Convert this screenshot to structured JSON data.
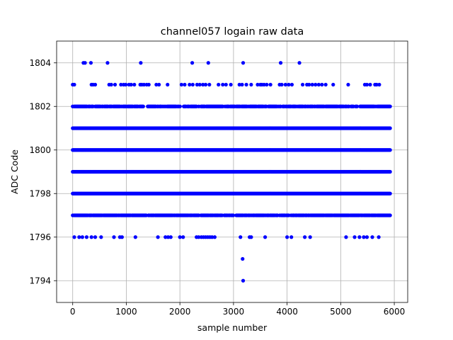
{
  "chart_data": {
    "type": "scatter",
    "title": "channel057 logain raw data",
    "xlabel": "sample number",
    "ylabel": "ADC Code",
    "xlim": [
      -300,
      6250
    ],
    "ylim": [
      1793.0,
      1805.0
    ],
    "xticks": [
      0,
      1000,
      2000,
      3000,
      4000,
      5000,
      6000
    ],
    "yticks": [
      1794,
      1796,
      1798,
      1800,
      1802,
      1804
    ],
    "grid": true,
    "marker": "circle",
    "color": "#0000ff",
    "sample_count": 6000,
    "points_by_level": [
      {
        "y": 1804,
        "x": [
          200,
          230,
          340,
          650,
          1270,
          2230,
          2530,
          3180,
          3880,
          4230
        ]
      },
      {
        "y": 1803,
        "x": [
          0,
          30,
          350,
          380,
          420,
          680,
          720,
          790,
          900,
          950,
          990,
          1050,
          1090,
          1150,
          1260,
          1290,
          1330,
          1380,
          1420,
          1560,
          1610,
          1770,
          2030,
          2090,
          2180,
          2240,
          2320,
          2370,
          2430,
          2480,
          2550,
          2720,
          2800,
          2860,
          2950,
          3110,
          3160,
          3240,
          3330,
          3450,
          3500,
          3530,
          3570,
          3620,
          3690,
          3860,
          3900,
          3970,
          4030,
          4090,
          4290,
          4370,
          4410,
          4470,
          4530,
          4590,
          4650,
          4720,
          4860,
          5140,
          5450,
          5490,
          5550,
          5640,
          5670,
          5720
        ]
      },
      {
        "y": 1802,
        "density": 0.85,
        "x_range": [
          0,
          5930
        ]
      },
      {
        "y": 1801,
        "density": 1.0,
        "x_range": [
          0,
          5930
        ]
      },
      {
        "y": 1800,
        "density": 1.0,
        "x_range": [
          0,
          5930
        ]
      },
      {
        "y": 1799,
        "density": 1.0,
        "x_range": [
          0,
          5930
        ]
      },
      {
        "y": 1798,
        "density": 1.0,
        "x_range": [
          0,
          5930
        ]
      },
      {
        "y": 1797,
        "density": 0.85,
        "x_range": [
          0,
          5930
        ]
      },
      {
        "y": 1796,
        "x": [
          30,
          120,
          180,
          260,
          350,
          420,
          530,
          770,
          880,
          920,
          1170,
          1590,
          1730,
          1780,
          1830,
          2000,
          2060,
          2310,
          2350,
          2400,
          2440,
          2480,
          2520,
          2560,
          2600,
          2650,
          3130,
          3300,
          3330,
          3590,
          4000,
          4080,
          4330,
          4430,
          5100,
          5260,
          5350,
          5430,
          5490,
          5590,
          5710
        ]
      },
      {
        "y": 1795,
        "x": [
          3170
        ]
      },
      {
        "y": 1794,
        "x": [
          3180
        ]
      }
    ]
  }
}
